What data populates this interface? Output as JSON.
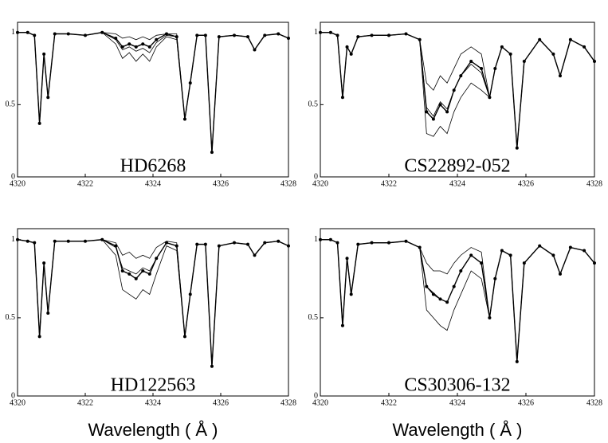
{
  "chart_data": [
    {
      "type": "line",
      "title": "HD6268",
      "x": [
        4320.0,
        4320.3,
        4320.5,
        4320.65,
        4320.78,
        4320.9,
        4321.1,
        4321.5,
        4322.0,
        4322.5,
        4322.9,
        4323.1,
        4323.3,
        4323.5,
        4323.7,
        4323.9,
        4324.1,
        4324.4,
        4324.7,
        4324.94,
        4325.1,
        4325.3,
        4325.55,
        4325.74,
        4325.95,
        4326.4,
        4326.8,
        4327.0,
        4327.3,
        4327.7,
        4328.0
      ],
      "series": [
        {
          "color": "#000000",
          "style": "markers",
          "values": [
            1,
            1,
            0.98,
            0.37,
            0.85,
            0.55,
            0.99,
            0.99,
            0.98,
            1,
            0.96,
            0.9,
            0.92,
            0.9,
            0.92,
            0.9,
            0.95,
            0.99,
            0.97,
            0.4,
            0.65,
            0.98,
            0.98,
            0.17,
            0.97,
            0.98,
            0.97,
            0.88,
            0.98,
            0.99,
            0.96
          ]
        },
        {
          "color": "#000000",
          "style": "line",
          "values": [
            1,
            1,
            0.98,
            0.37,
            0.85,
            0.55,
            0.99,
            0.99,
            0.98,
            1,
            0.99,
            0.96,
            0.97,
            0.95,
            0.97,
            0.95,
            0.98,
            0.99,
            0.99,
            0.4,
            0.65,
            0.98,
            0.98,
            0.17,
            0.97,
            0.98,
            0.97,
            0.88,
            0.98,
            0.99,
            0.96
          ]
        },
        {
          "color": "#000000",
          "style": "line",
          "values": [
            1,
            1,
            0.98,
            0.37,
            0.85,
            0.55,
            0.99,
            0.99,
            0.98,
            1,
            0.95,
            0.88,
            0.9,
            0.87,
            0.89,
            0.86,
            0.93,
            0.98,
            0.97,
            0.4,
            0.65,
            0.98,
            0.98,
            0.17,
            0.97,
            0.98,
            0.97,
            0.88,
            0.98,
            0.99,
            0.96
          ]
        },
        {
          "color": "#000000",
          "style": "line",
          "values": [
            1,
            1,
            0.98,
            0.37,
            0.85,
            0.55,
            0.99,
            0.99,
            0.98,
            1,
            0.92,
            0.82,
            0.86,
            0.8,
            0.85,
            0.8,
            0.9,
            0.97,
            0.95,
            0.4,
            0.65,
            0.98,
            0.98,
            0.17,
            0.97,
            0.98,
            0.97,
            0.88,
            0.98,
            0.99,
            0.96
          ]
        }
      ],
      "xlim": [
        4320,
        4328
      ],
      "xticks": [
        4320,
        4322,
        4324,
        4326,
        4328
      ],
      "ylim": [
        0,
        1.07
      ],
      "yticks": [
        0,
        0.5,
        1
      ]
    },
    {
      "type": "line",
      "title": "CS22892-052",
      "x": [
        4320.0,
        4320.3,
        4320.5,
        4320.65,
        4320.78,
        4320.9,
        4321.1,
        4321.5,
        4322.0,
        4322.5,
        4322.9,
        4323.1,
        4323.3,
        4323.5,
        4323.7,
        4323.9,
        4324.1,
        4324.4,
        4324.7,
        4324.94,
        4325.1,
        4325.3,
        4325.55,
        4325.74,
        4325.95,
        4326.4,
        4326.8,
        4327.0,
        4327.3,
        4327.7,
        4328.0
      ],
      "series": [
        {
          "color": "#000000",
          "style": "markers",
          "values": [
            1,
            1,
            0.98,
            0.55,
            0.9,
            0.85,
            0.97,
            0.98,
            0.98,
            0.99,
            0.95,
            0.45,
            0.4,
            0.5,
            0.45,
            0.6,
            0.7,
            0.8,
            0.75,
            0.55,
            0.75,
            0.9,
            0.85,
            0.2,
            0.8,
            0.95,
            0.85,
            0.7,
            0.95,
            0.9,
            0.8
          ]
        },
        {
          "color": "#000000",
          "style": "line",
          "values": [
            1,
            1,
            0.98,
            0.55,
            0.9,
            0.85,
            0.97,
            0.98,
            0.98,
            0.99,
            0.95,
            0.65,
            0.6,
            0.7,
            0.65,
            0.75,
            0.85,
            0.9,
            0.85,
            0.55,
            0.75,
            0.9,
            0.85,
            0.2,
            0.8,
            0.95,
            0.85,
            0.7,
            0.95,
            0.9,
            0.8
          ]
        },
        {
          "color": "#000000",
          "style": "line",
          "values": [
            1,
            1,
            0.98,
            0.55,
            0.9,
            0.85,
            0.97,
            0.98,
            0.98,
            0.99,
            0.95,
            0.48,
            0.42,
            0.52,
            0.47,
            0.6,
            0.7,
            0.78,
            0.72,
            0.55,
            0.75,
            0.9,
            0.85,
            0.2,
            0.8,
            0.95,
            0.85,
            0.7,
            0.95,
            0.9,
            0.8
          ]
        },
        {
          "color": "#000000",
          "style": "line",
          "values": [
            1,
            1,
            0.98,
            0.55,
            0.9,
            0.85,
            0.97,
            0.98,
            0.98,
            0.99,
            0.95,
            0.3,
            0.28,
            0.35,
            0.3,
            0.45,
            0.55,
            0.65,
            0.6,
            0.55,
            0.75,
            0.9,
            0.85,
            0.2,
            0.8,
            0.95,
            0.85,
            0.7,
            0.95,
            0.9,
            0.8
          ]
        }
      ],
      "xlim": [
        4320,
        4328
      ],
      "xticks": [
        4320,
        4322,
        4324,
        4326,
        4328
      ],
      "ylim": [
        0,
        1.07
      ],
      "yticks": [
        0,
        0.5,
        1
      ]
    },
    {
      "type": "line",
      "title": "HD122563",
      "xlabel": "Wavelength ( Å )",
      "x": [
        4320.0,
        4320.3,
        4320.5,
        4320.65,
        4320.78,
        4320.9,
        4321.1,
        4321.5,
        4322.0,
        4322.5,
        4322.9,
        4323.1,
        4323.3,
        4323.5,
        4323.7,
        4323.9,
        4324.1,
        4324.4,
        4324.7,
        4324.94,
        4325.1,
        4325.3,
        4325.55,
        4325.74,
        4325.95,
        4326.4,
        4326.8,
        4327.0,
        4327.3,
        4327.7,
        4328.0
      ],
      "series": [
        {
          "color": "#000000",
          "style": "markers",
          "values": [
            1,
            0.99,
            0.98,
            0.38,
            0.85,
            0.53,
            0.99,
            0.99,
            0.99,
            1,
            0.96,
            0.8,
            0.78,
            0.75,
            0.8,
            0.78,
            0.88,
            0.98,
            0.96,
            0.38,
            0.65,
            0.97,
            0.97,
            0.19,
            0.96,
            0.98,
            0.97,
            0.9,
            0.98,
            0.99,
            0.96
          ]
        },
        {
          "color": "#000000",
          "style": "line",
          "values": [
            1,
            0.99,
            0.98,
            0.38,
            0.85,
            0.53,
            0.99,
            0.99,
            0.99,
            1,
            0.98,
            0.9,
            0.92,
            0.88,
            0.9,
            0.88,
            0.95,
            0.99,
            0.98,
            0.38,
            0.65,
            0.97,
            0.97,
            0.19,
            0.96,
            0.98,
            0.97,
            0.9,
            0.98,
            0.99,
            0.96
          ]
        },
        {
          "color": "#000000",
          "style": "line",
          "values": [
            1,
            0.99,
            0.98,
            0.38,
            0.85,
            0.53,
            0.99,
            0.99,
            0.99,
            1,
            0.95,
            0.82,
            0.8,
            0.78,
            0.82,
            0.8,
            0.88,
            0.98,
            0.96,
            0.38,
            0.65,
            0.97,
            0.97,
            0.19,
            0.96,
            0.98,
            0.97,
            0.9,
            0.98,
            0.99,
            0.96
          ]
        },
        {
          "color": "#000000",
          "style": "line",
          "values": [
            1,
            0.99,
            0.98,
            0.38,
            0.85,
            0.53,
            0.99,
            0.99,
            0.99,
            1,
            0.9,
            0.68,
            0.65,
            0.62,
            0.68,
            0.65,
            0.78,
            0.96,
            0.93,
            0.38,
            0.65,
            0.97,
            0.97,
            0.19,
            0.96,
            0.98,
            0.97,
            0.9,
            0.98,
            0.99,
            0.96
          ]
        }
      ],
      "xlim": [
        4320,
        4328
      ],
      "xticks": [
        4320,
        4322,
        4324,
        4326,
        4328
      ],
      "ylim": [
        0,
        1.07
      ],
      "yticks": [
        0,
        0.5,
        1
      ]
    },
    {
      "type": "line",
      "title": "CS30306-132",
      "xlabel": "Wavelength ( Å )",
      "x": [
        4320.0,
        4320.3,
        4320.5,
        4320.65,
        4320.78,
        4320.9,
        4321.1,
        4321.5,
        4322.0,
        4322.5,
        4322.9,
        4323.1,
        4323.3,
        4323.5,
        4323.7,
        4323.9,
        4324.1,
        4324.4,
        4324.7,
        4324.94,
        4325.1,
        4325.3,
        4325.55,
        4325.74,
        4325.95,
        4326.4,
        4326.8,
        4327.0,
        4327.3,
        4327.7,
        4328.0
      ],
      "series": [
        {
          "color": "#000000",
          "style": "markers",
          "values": [
            1,
            1,
            0.98,
            0.45,
            0.88,
            0.65,
            0.97,
            0.98,
            0.98,
            0.99,
            0.95,
            0.7,
            0.65,
            0.62,
            0.6,
            0.7,
            0.8,
            0.9,
            0.85,
            0.5,
            0.75,
            0.93,
            0.9,
            0.22,
            0.85,
            0.96,
            0.9,
            0.78,
            0.95,
            0.93,
            0.85
          ]
        },
        {
          "color": "#000000",
          "style": "line",
          "values": [
            1,
            1,
            0.98,
            0.45,
            0.88,
            0.65,
            0.97,
            0.98,
            0.98,
            0.99,
            0.95,
            0.85,
            0.8,
            0.8,
            0.78,
            0.85,
            0.9,
            0.95,
            0.92,
            0.5,
            0.75,
            0.93,
            0.9,
            0.22,
            0.85,
            0.96,
            0.9,
            0.78,
            0.95,
            0.93,
            0.85
          ]
        },
        {
          "color": "#000000",
          "style": "line",
          "values": [
            1,
            1,
            0.98,
            0.45,
            0.88,
            0.65,
            0.97,
            0.98,
            0.98,
            0.99,
            0.95,
            0.7,
            0.66,
            0.62,
            0.6,
            0.7,
            0.8,
            0.9,
            0.85,
            0.5,
            0.75,
            0.93,
            0.9,
            0.22,
            0.85,
            0.96,
            0.9,
            0.78,
            0.95,
            0.93,
            0.85
          ]
        },
        {
          "color": "#000000",
          "style": "line",
          "values": [
            1,
            1,
            0.98,
            0.45,
            0.88,
            0.65,
            0.97,
            0.98,
            0.98,
            0.99,
            0.95,
            0.55,
            0.5,
            0.45,
            0.42,
            0.55,
            0.65,
            0.8,
            0.75,
            0.5,
            0.75,
            0.93,
            0.9,
            0.22,
            0.85,
            0.96,
            0.9,
            0.78,
            0.95,
            0.93,
            0.85
          ]
        }
      ],
      "xlim": [
        4320,
        4328
      ],
      "xticks": [
        4320,
        4322,
        4324,
        4326,
        4328
      ],
      "ylim": [
        0,
        1.07
      ],
      "yticks": [
        0,
        0.5,
        1
      ]
    }
  ]
}
